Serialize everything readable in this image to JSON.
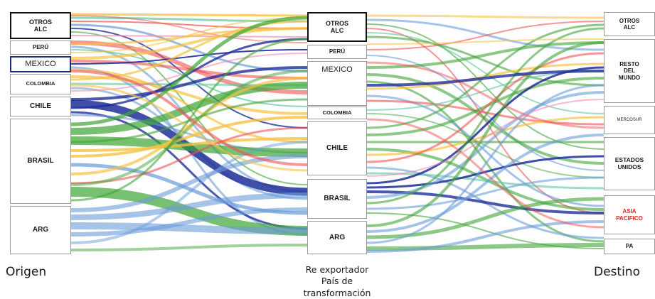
{
  "columns": {
    "origen": {
      "label": "Origen",
      "nodes": [
        {
          "label": "OTROS\nALC"
        },
        {
          "label": "PERÚ"
        },
        {
          "label": "MEXICO"
        },
        {
          "label": "COLOMBIA"
        },
        {
          "label": "CHILE"
        },
        {
          "label": "BRASIL"
        },
        {
          "label": "ARG"
        }
      ]
    },
    "reexportador": {
      "label_line1": "Re exportador",
      "label_line2": "País de",
      "label_line3": "transformación",
      "nodes": [
        {
          "label": "OTROS\nALC"
        },
        {
          "label": "PERÚ"
        },
        {
          "label": "MEXICO"
        },
        {
          "label": "COLOMBIA"
        },
        {
          "label": "CHILE"
        },
        {
          "label": "BRASIL"
        },
        {
          "label": "ARG"
        }
      ]
    },
    "destino": {
      "label": "Destino",
      "nodes": [
        {
          "label": "OTROS\nALC"
        },
        {
          "label": "RESTO\nDEL\nMUNDO"
        },
        {
          "label": "MERCOSUR"
        },
        {
          "label": "ESTADOS\nUNIDOS"
        },
        {
          "label": "ASIA\nPACIFICO",
          "text_color": "#e02020"
        },
        {
          "label": "PA"
        }
      ]
    }
  },
  "colors": {
    "green": "#3fa535",
    "blue_light": "#6a9bd8",
    "blue_dark": "#1f2f99",
    "red": "#f05050",
    "yellow": "#f5c242",
    "teal": "#5cc6a0",
    "pink": "#f28ab0"
  }
}
